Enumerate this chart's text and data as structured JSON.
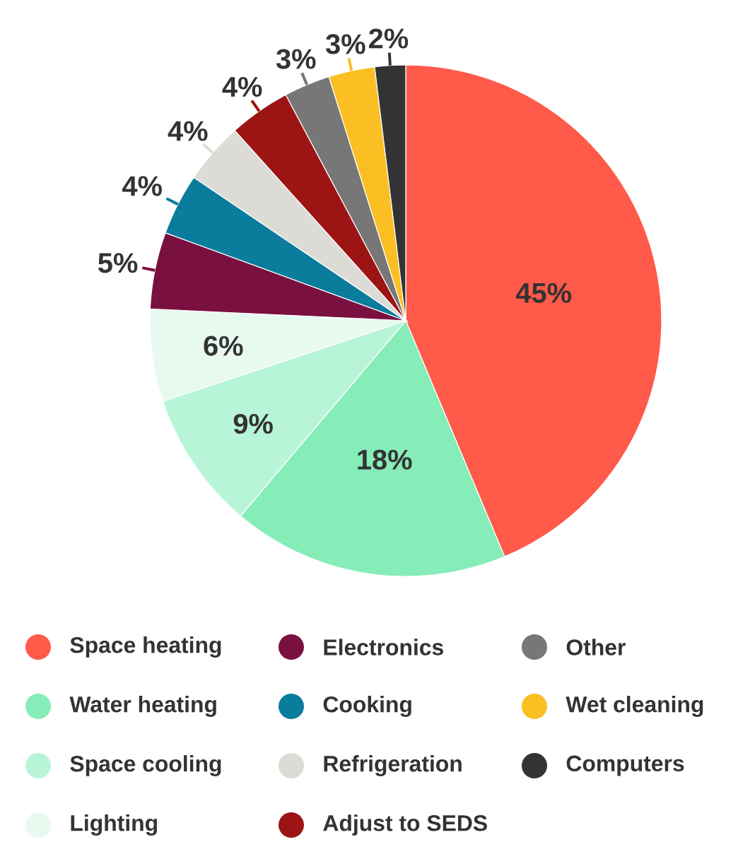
{
  "chart_data": {
    "type": "pie",
    "categories": [
      "Space heating",
      "Water heating",
      "Space cooling",
      "Lighting",
      "Electronics",
      "Cooking",
      "Refrigeration",
      "Adjust to SEDS",
      "Other",
      "Wet cleaning",
      "Computers"
    ],
    "values": [
      45,
      18,
      9,
      6,
      5,
      4,
      4,
      4,
      3,
      3,
      2
    ],
    "value_labels": [
      "45%",
      "18%",
      "9%",
      "6%",
      "5%",
      "4%",
      "4%",
      "4%",
      "3%",
      "3%",
      "2%"
    ],
    "colors": [
      "#ff5a4a",
      "#86ecb8",
      "#b8f5d8",
      "#e8faf0",
      "#7a1040",
      "#0a7c9c",
      "#dcdbd5",
      "#9c1414",
      "#777777",
      "#fbbf24",
      "#333333"
    ],
    "legend": "bottom"
  }
}
